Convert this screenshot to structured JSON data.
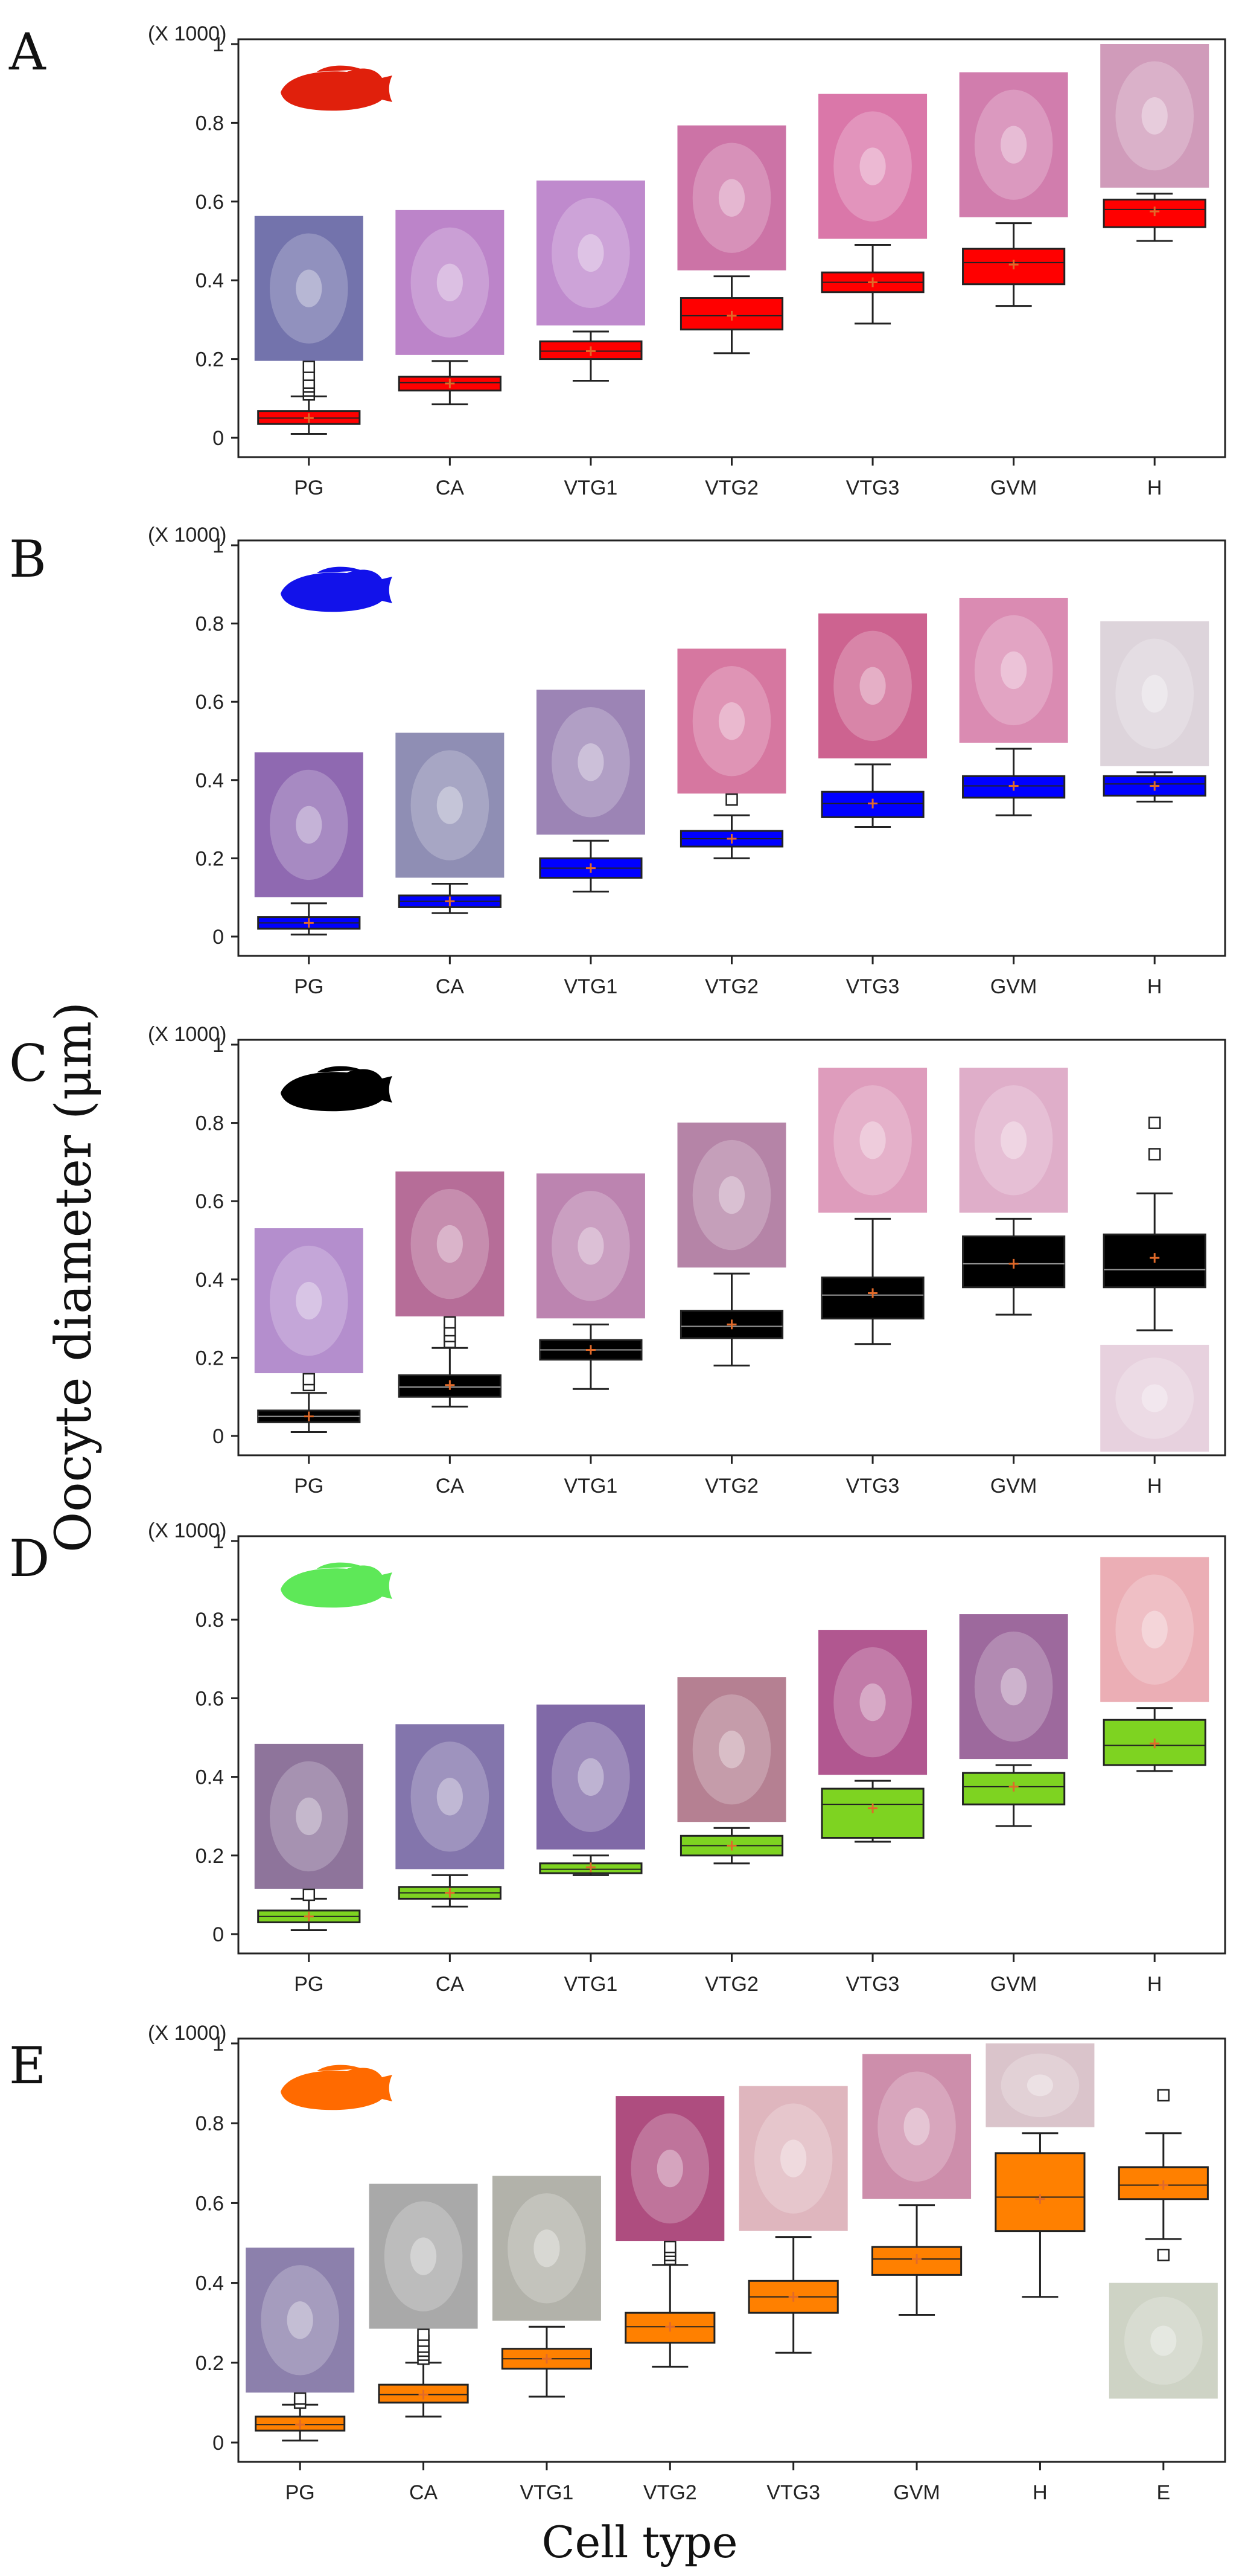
{
  "figure": {
    "y_axis_label": "Oocyte diameter (μm)",
    "x_axis_label": "Cell type",
    "multiplier_label": "(X 1000)"
  },
  "chart_data": [
    {
      "type": "boxplot",
      "panel": "A",
      "fish_color": "#e0200c",
      "box_color": "#ff0000",
      "categories": [
        "PG",
        "CA",
        "VTG1",
        "VTG2",
        "VTG3",
        "GVM",
        "H"
      ],
      "ylim": [
        0,
        1
      ],
      "yticks": [
        "0",
        "0.2",
        "0.4",
        "0.6",
        "0.8",
        "1"
      ],
      "boxes": [
        {
          "q1": 0.035,
          "median": 0.05,
          "q3": 0.068,
          "whisker_low": 0.01,
          "whisker_high": 0.105,
          "mean": 0.05,
          "outliers": [
            0.11,
            0.12,
            0.13,
            0.14,
            0.16,
            0.18
          ]
        },
        {
          "q1": 0.12,
          "median": 0.14,
          "q3": 0.155,
          "whisker_low": 0.085,
          "whisker_high": 0.195,
          "mean": 0.138,
          "outliers": []
        },
        {
          "q1": 0.2,
          "median": 0.22,
          "q3": 0.245,
          "whisker_low": 0.145,
          "whisker_high": 0.27,
          "mean": 0.22,
          "outliers": []
        },
        {
          "q1": 0.275,
          "median": 0.31,
          "q3": 0.355,
          "whisker_low": 0.215,
          "whisker_high": 0.41,
          "mean": 0.31,
          "outliers": []
        },
        {
          "q1": 0.37,
          "median": 0.395,
          "q3": 0.42,
          "whisker_low": 0.29,
          "whisker_high": 0.49,
          "mean": 0.395,
          "outliers": []
        },
        {
          "q1": 0.39,
          "median": 0.445,
          "q3": 0.48,
          "whisker_low": 0.335,
          "whisker_high": 0.545,
          "mean": 0.44,
          "outliers": []
        },
        {
          "q1": 0.535,
          "median": 0.58,
          "q3": 0.605,
          "whisker_low": 0.5,
          "whisker_high": 0.62,
          "mean": 0.575,
          "outliers": []
        }
      ]
    },
    {
      "type": "boxplot",
      "panel": "B",
      "fish_color": "#1212ea",
      "box_color": "#0000ff",
      "categories": [
        "PG",
        "CA",
        "VTG1",
        "VTG2",
        "VTG3",
        "GVM",
        "H"
      ],
      "ylim": [
        0,
        1
      ],
      "yticks": [
        "0",
        "0.2",
        "0.4",
        "0.6",
        "0.8",
        "1"
      ],
      "boxes": [
        {
          "q1": 0.02,
          "median": 0.035,
          "q3": 0.05,
          "whisker_low": 0.005,
          "whisker_high": 0.085,
          "mean": 0.035,
          "outliers": []
        },
        {
          "q1": 0.075,
          "median": 0.09,
          "q3": 0.105,
          "whisker_low": 0.06,
          "whisker_high": 0.135,
          "mean": 0.09,
          "outliers": []
        },
        {
          "q1": 0.15,
          "median": 0.175,
          "q3": 0.2,
          "whisker_low": 0.115,
          "whisker_high": 0.245,
          "mean": 0.175,
          "outliers": []
        },
        {
          "q1": 0.23,
          "median": 0.25,
          "q3": 0.27,
          "whisker_low": 0.2,
          "whisker_high": 0.31,
          "mean": 0.25,
          "outliers": [
            0.35
          ]
        },
        {
          "q1": 0.305,
          "median": 0.34,
          "q3": 0.37,
          "whisker_low": 0.28,
          "whisker_high": 0.44,
          "mean": 0.34,
          "outliers": []
        },
        {
          "q1": 0.355,
          "median": 0.385,
          "q3": 0.41,
          "whisker_low": 0.31,
          "whisker_high": 0.48,
          "mean": 0.385,
          "outliers": []
        },
        {
          "q1": 0.36,
          "median": 0.39,
          "q3": 0.41,
          "whisker_low": 0.345,
          "whisker_high": 0.42,
          "mean": 0.385,
          "outliers": []
        }
      ]
    },
    {
      "type": "boxplot",
      "panel": "C",
      "fish_color": "#000000",
      "box_color": "#000000",
      "categories": [
        "PG",
        "CA",
        "VTG1",
        "VTG2",
        "VTG3",
        "GVM",
        "H"
      ],
      "ylim": [
        0,
        1
      ],
      "yticks": [
        "0",
        "0.2",
        "0.4",
        "0.6",
        "0.8",
        "1"
      ],
      "boxes": [
        {
          "q1": 0.035,
          "median": 0.05,
          "q3": 0.065,
          "whisker_low": 0.01,
          "whisker_high": 0.11,
          "mean": 0.05,
          "outliers": [
            0.13,
            0.145
          ]
        },
        {
          "q1": 0.1,
          "median": 0.125,
          "q3": 0.155,
          "whisker_low": 0.075,
          "whisker_high": 0.225,
          "mean": 0.13,
          "outliers": [
            0.24,
            0.255,
            0.27,
            0.29
          ]
        },
        {
          "q1": 0.195,
          "median": 0.22,
          "q3": 0.245,
          "whisker_low": 0.12,
          "whisker_high": 0.285,
          "mean": 0.22,
          "outliers": []
        },
        {
          "q1": 0.25,
          "median": 0.28,
          "q3": 0.32,
          "whisker_low": 0.18,
          "whisker_high": 0.415,
          "mean": 0.285,
          "outliers": []
        },
        {
          "q1": 0.3,
          "median": 0.36,
          "q3": 0.405,
          "whisker_low": 0.235,
          "whisker_high": 0.555,
          "mean": 0.365,
          "outliers": []
        },
        {
          "q1": 0.38,
          "median": 0.44,
          "q3": 0.51,
          "whisker_low": 0.31,
          "whisker_high": 0.555,
          "mean": 0.44,
          "outliers": []
        },
        {
          "q1": 0.38,
          "median": 0.425,
          "q3": 0.515,
          "whisker_low": 0.27,
          "whisker_high": 0.62,
          "mean": 0.455,
          "outliers": [
            0.72,
            0.8
          ]
        }
      ]
    },
    {
      "type": "boxplot",
      "panel": "D",
      "fish_color": "#5ee858",
      "box_color": "#7ed321",
      "categories": [
        "PG",
        "CA",
        "VTG1",
        "VTG2",
        "VTG3",
        "GVM",
        "H"
      ],
      "ylim": [
        0,
        1
      ],
      "yticks": [
        "0",
        "0.2",
        "0.4",
        "0.6",
        "0.8",
        "1"
      ],
      "boxes": [
        {
          "q1": 0.03,
          "median": 0.045,
          "q3": 0.06,
          "whisker_low": 0.01,
          "whisker_high": 0.09,
          "mean": 0.045,
          "outliers": [
            0.1
          ]
        },
        {
          "q1": 0.09,
          "median": 0.105,
          "q3": 0.12,
          "whisker_low": 0.07,
          "whisker_high": 0.15,
          "mean": 0.105,
          "outliers": []
        },
        {
          "q1": 0.155,
          "median": 0.165,
          "q3": 0.18,
          "whisker_low": 0.15,
          "whisker_high": 0.2,
          "mean": 0.17,
          "outliers": []
        },
        {
          "q1": 0.2,
          "median": 0.225,
          "q3": 0.25,
          "whisker_low": 0.18,
          "whisker_high": 0.27,
          "mean": 0.225,
          "outliers": []
        },
        {
          "q1": 0.245,
          "median": 0.33,
          "q3": 0.37,
          "whisker_low": 0.235,
          "whisker_high": 0.39,
          "mean": 0.32,
          "outliers": []
        },
        {
          "q1": 0.33,
          "median": 0.375,
          "q3": 0.41,
          "whisker_low": 0.275,
          "whisker_high": 0.43,
          "mean": 0.375,
          "outliers": []
        },
        {
          "q1": 0.43,
          "median": 0.48,
          "q3": 0.545,
          "whisker_low": 0.415,
          "whisker_high": 0.575,
          "mean": 0.485,
          "outliers": []
        }
      ]
    },
    {
      "type": "boxplot",
      "panel": "E",
      "fish_color": "#ff6a00",
      "box_color": "#ff8000",
      "categories": [
        "PG",
        "CA",
        "VTG1",
        "VTG2",
        "VTG3",
        "GVM",
        "H",
        "E"
      ],
      "ylim": [
        0,
        1
      ],
      "yticks": [
        "0",
        "0.2",
        "0.4",
        "0.6",
        "0.8",
        "1"
      ],
      "boxes": [
        {
          "q1": 0.03,
          "median": 0.045,
          "q3": 0.065,
          "whisker_low": 0.005,
          "whisker_high": 0.095,
          "mean": 0.045,
          "outliers": [
            0.1,
            0.11
          ]
        },
        {
          "q1": 0.1,
          "median": 0.12,
          "q3": 0.145,
          "whisker_low": 0.065,
          "whisker_high": 0.2,
          "mean": 0.12,
          "outliers": [
            0.21,
            0.22,
            0.23,
            0.24,
            0.255,
            0.27
          ]
        },
        {
          "q1": 0.185,
          "median": 0.21,
          "q3": 0.235,
          "whisker_low": 0.115,
          "whisker_high": 0.29,
          "mean": 0.21,
          "outliers": []
        },
        {
          "q1": 0.25,
          "median": 0.29,
          "q3": 0.325,
          "whisker_low": 0.19,
          "whisker_high": 0.445,
          "mean": 0.29,
          "outliers": [
            0.46,
            0.47,
            0.48,
            0.49
          ]
        },
        {
          "q1": 0.325,
          "median": 0.365,
          "q3": 0.405,
          "whisker_low": 0.225,
          "whisker_high": 0.515,
          "mean": 0.365,
          "outliers": []
        },
        {
          "q1": 0.42,
          "median": 0.46,
          "q3": 0.49,
          "whisker_low": 0.32,
          "whisker_high": 0.595,
          "mean": 0.46,
          "outliers": []
        },
        {
          "q1": 0.53,
          "median": 0.615,
          "q3": 0.725,
          "whisker_low": 0.365,
          "whisker_high": 0.775,
          "mean": 0.61,
          "outliers": []
        },
        {
          "q1": 0.61,
          "median": 0.645,
          "q3": 0.69,
          "whisker_low": 0.51,
          "whisker_high": 0.775,
          "mean": 0.645,
          "outliers": [
            0.47,
            0.87
          ]
        }
      ]
    }
  ]
}
